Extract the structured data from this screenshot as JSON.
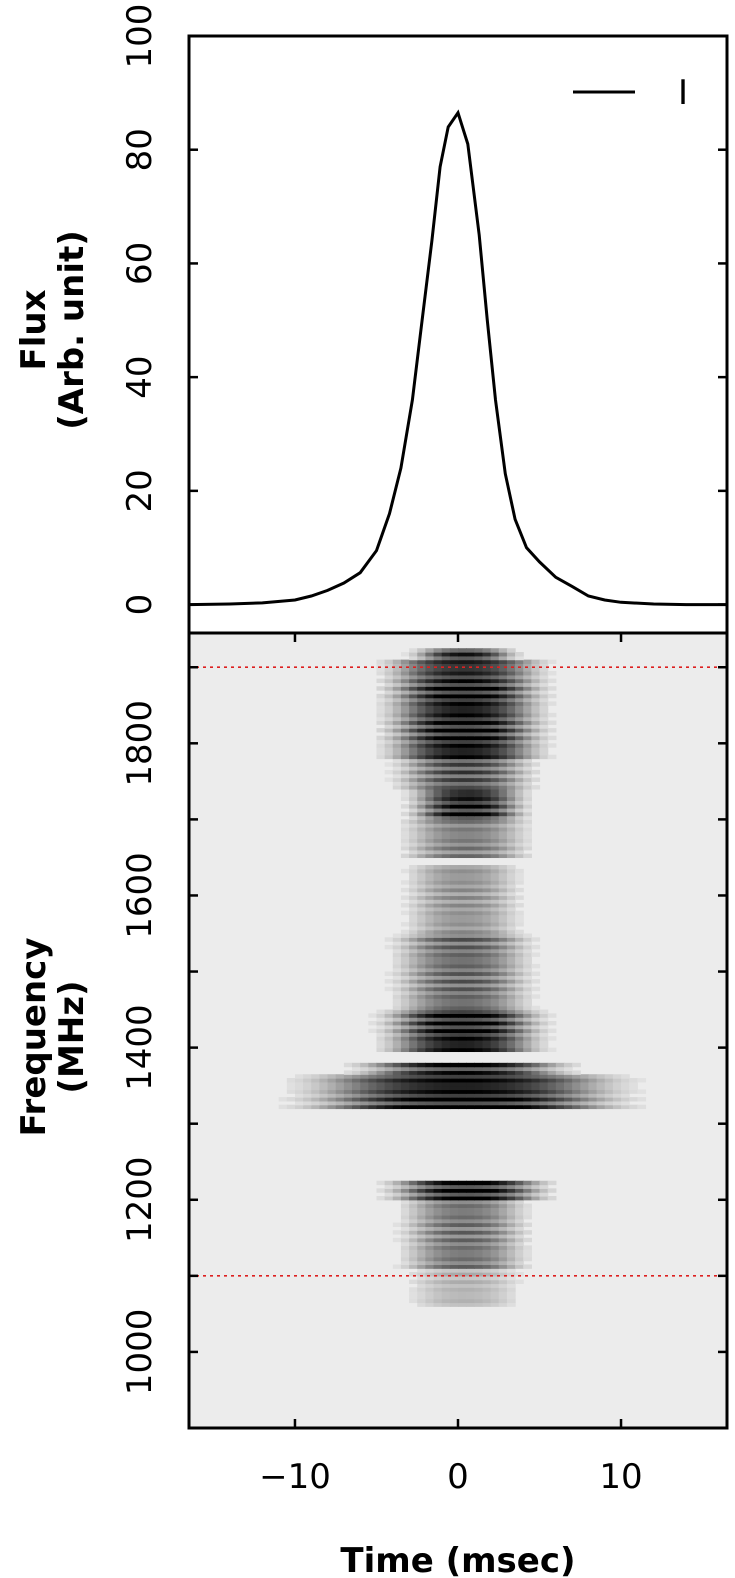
{
  "chart_data": [
    {
      "type": "line",
      "panel": "top",
      "ylabel_lines": [
        "Flux",
        "(Arb. unit)"
      ],
      "xlim": [
        -16.5,
        16.5
      ],
      "ylim": [
        -5,
        100
      ],
      "yticks": [
        0,
        20,
        40,
        60,
        80,
        100
      ],
      "ytick_labels": [
        "0",
        "20",
        "40",
        "60",
        "80",
        "100"
      ],
      "legend_position": "top-right",
      "series": [
        {
          "name": "I",
          "color": "#000000",
          "x": [
            -16.5,
            -14,
            -12,
            -10,
            -9,
            -8,
            -7,
            -6,
            -5,
            -4.2,
            -3.5,
            -2.8,
            -2.2,
            -1.6,
            -1.1,
            -0.6,
            0,
            0.6,
            1.3,
            1.8,
            2.3,
            2.9,
            3.5,
            4.2,
            5,
            6,
            7,
            8,
            9,
            10,
            12,
            14,
            16.5
          ],
          "y": [
            0,
            0.1,
            0.3,
            0.8,
            1.5,
            2.5,
            3.8,
            5.6,
            9.5,
            16,
            24,
            36,
            50,
            64,
            77,
            84,
            86.5,
            81,
            65,
            50,
            36,
            23,
            15,
            10,
            7.5,
            4.8,
            3.2,
            1.5,
            0.8,
            0.4,
            0.1,
            0,
            0
          ]
        }
      ]
    },
    {
      "type": "heatmap",
      "panel": "bottom",
      "xlabel": "Time (msec)",
      "ylabel_lines": [
        "Frequency",
        "(MHz)"
      ],
      "xlim": [
        -16.5,
        16.5
      ],
      "ylim": [
        900,
        1945
      ],
      "xticks": [
        -10,
        0,
        10
      ],
      "xtick_labels": [
        "−10",
        "0",
        "10"
      ],
      "yticks": [
        1000,
        1200,
        1400,
        1600,
        1800
      ],
      "ytick_labels": [
        "1000",
        "1200",
        "1400",
        "1600",
        "1800"
      ],
      "y_minor_ticks": [
        900,
        1100,
        1300,
        1500,
        1700,
        1900
      ],
      "colormap": "gray_r",
      "background_color": "#ececec",
      "reference_lines": [
        {
          "frequency": 1900,
          "color": "#dd2020",
          "style": "dotted"
        },
        {
          "frequency": 1100,
          "color": "#dd2020",
          "style": "dotted"
        }
      ],
      "intensity_bands": [
        {
          "f_low": 1060,
          "f_high": 1110,
          "intensity": 0.25,
          "width": 2.2,
          "center": 0.4
        },
        {
          "f_low": 1110,
          "f_high": 1200,
          "intensity": 0.55,
          "width": 2.4,
          "center": 0.4
        },
        {
          "f_low": 1200,
          "f_high": 1225,
          "intensity": 0.95,
          "width": 3.0,
          "center": 0.6
        },
        {
          "f_low": 1320,
          "f_high": 1365,
          "intensity": 1.0,
          "width": 6.0,
          "center": 0.3
        },
        {
          "f_low": 1365,
          "f_high": 1380,
          "intensity": 0.9,
          "width": 4.0,
          "center": 0.3
        },
        {
          "f_low": 1395,
          "f_high": 1450,
          "intensity": 1.0,
          "width": 3.0,
          "center": 0.3
        },
        {
          "f_low": 1450,
          "f_high": 1550,
          "intensity": 0.6,
          "width": 2.6,
          "center": 0.3
        },
        {
          "f_low": 1550,
          "f_high": 1640,
          "intensity": 0.4,
          "width": 2.2,
          "center": 0.3
        },
        {
          "f_low": 1650,
          "f_high": 1700,
          "intensity": 0.5,
          "width": 2.4,
          "center": 0.5
        },
        {
          "f_low": 1700,
          "f_high": 1740,
          "intensity": 0.95,
          "width": 2.2,
          "center": 0.6
        },
        {
          "f_low": 1740,
          "f_high": 1780,
          "intensity": 0.7,
          "width": 2.6,
          "center": 0.4
        },
        {
          "f_low": 1780,
          "f_high": 1880,
          "intensity": 1.0,
          "width": 3.0,
          "center": 0.4
        },
        {
          "f_low": 1880,
          "f_high": 1910,
          "intensity": 0.9,
          "width": 3.0,
          "center": 0.4
        },
        {
          "f_low": 1910,
          "f_high": 1925,
          "intensity": 0.85,
          "width": 2.0,
          "center": 0.4
        }
      ]
    }
  ]
}
